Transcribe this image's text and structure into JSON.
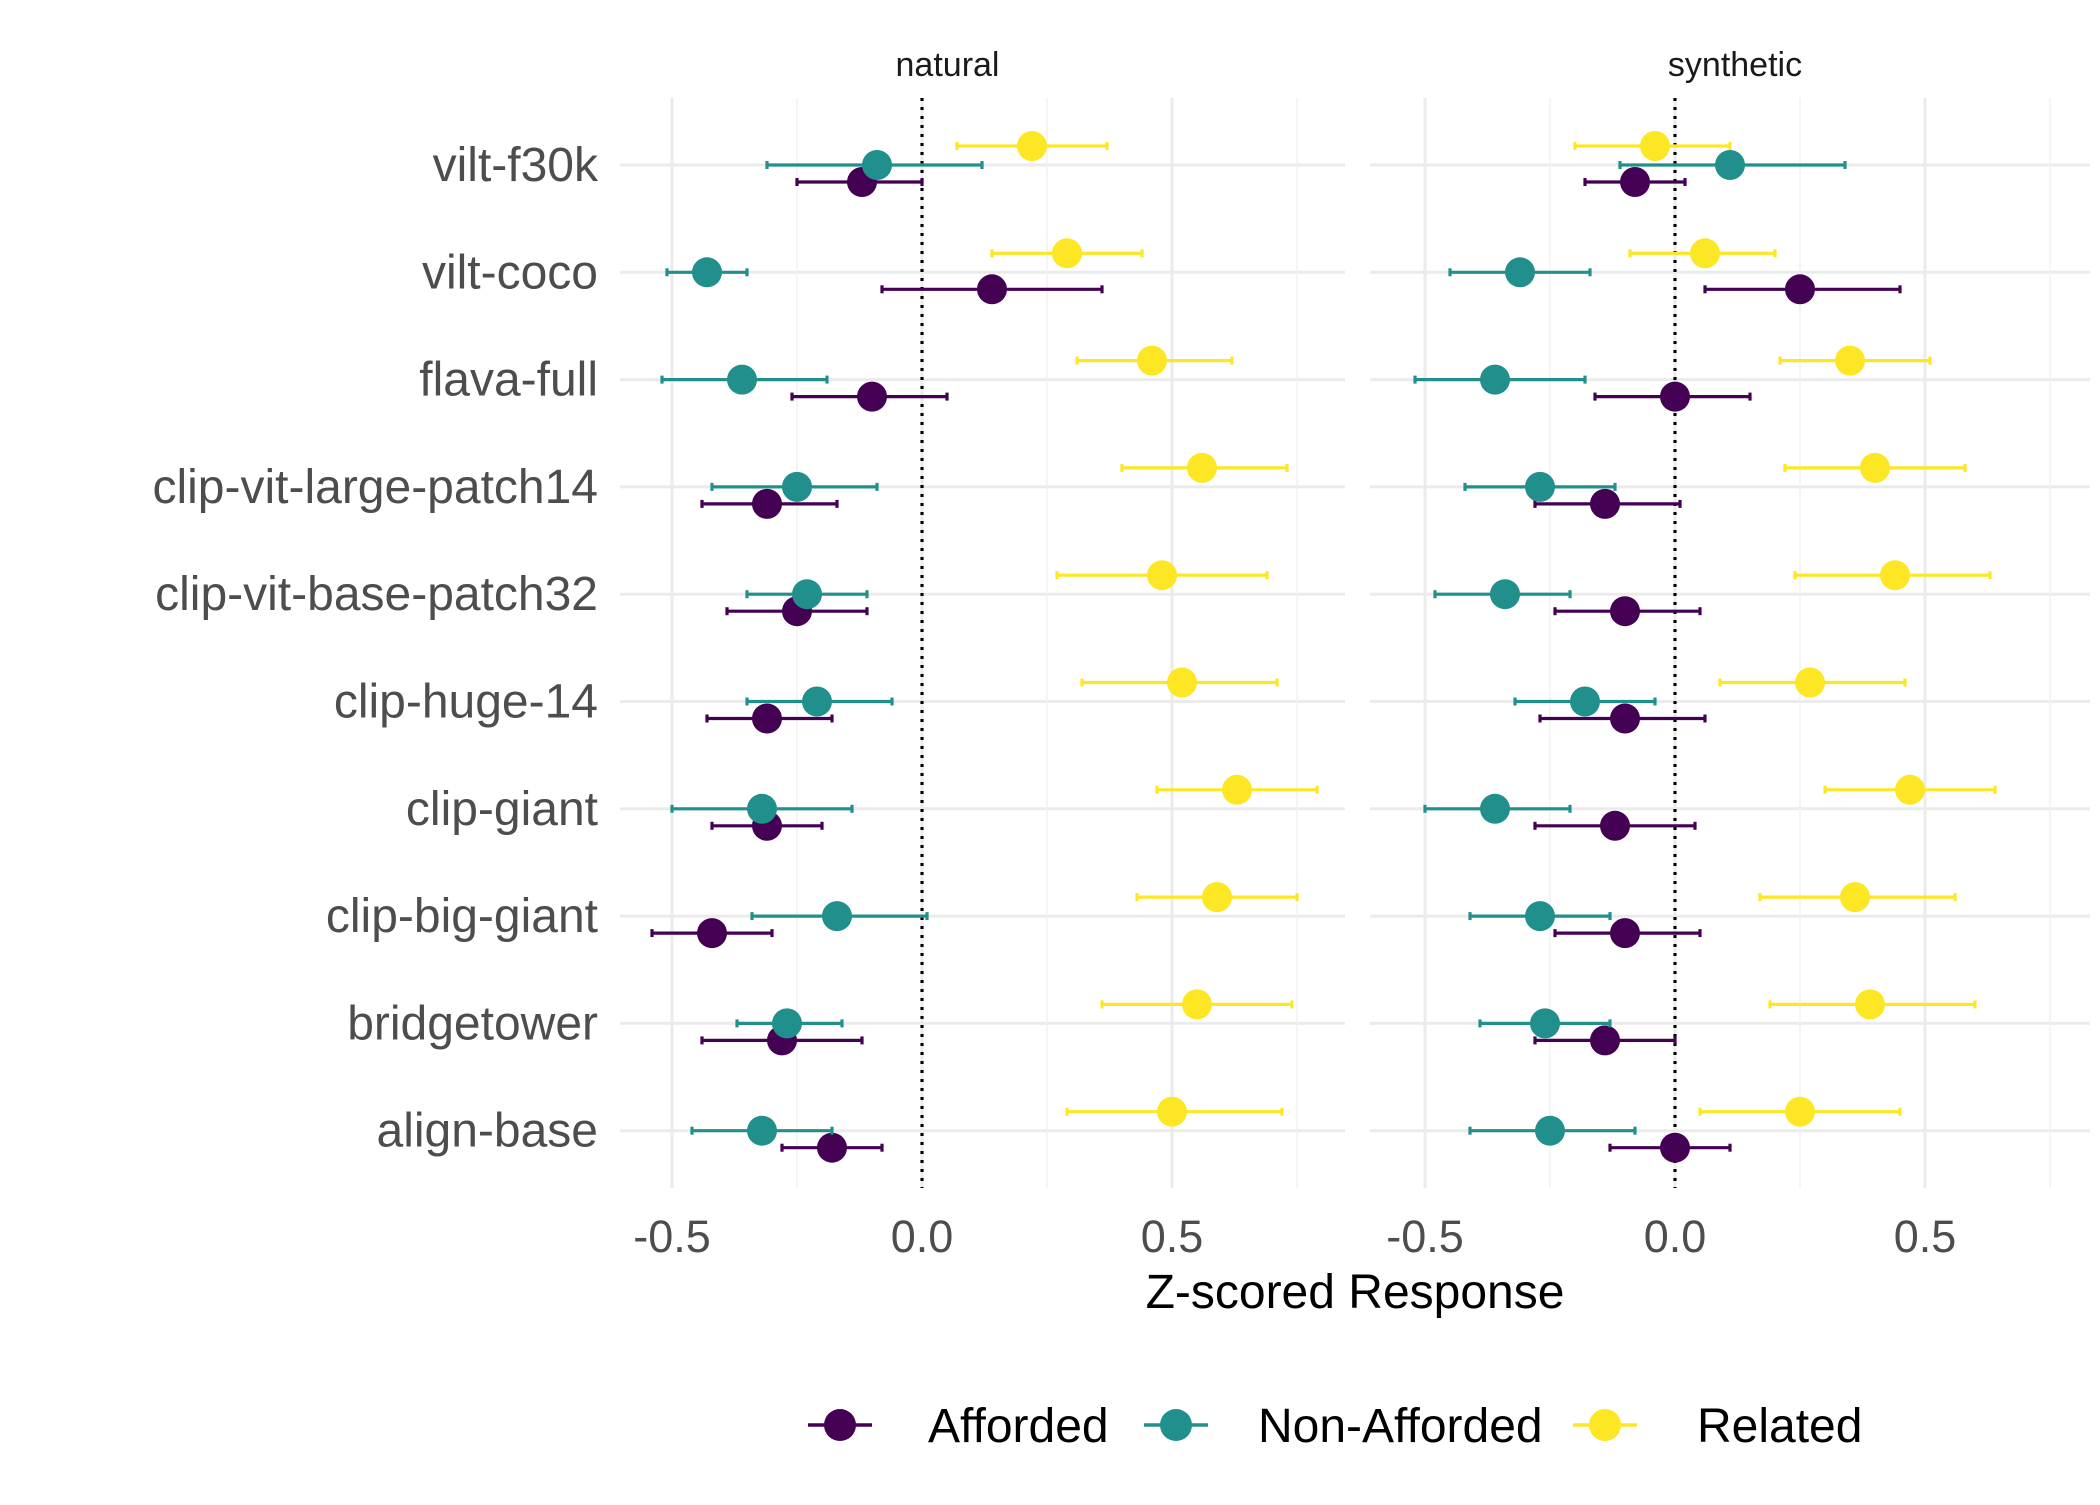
{
  "chart_data": {
    "type": "scatter",
    "subtype": "dot-and-errorbar, faceted",
    "xlabel": "Z-scored Response",
    "ylabel": "",
    "xlim": [
      -0.6,
      0.85
    ],
    "x_ticks": [
      -0.5,
      0.0,
      0.5
    ],
    "x_tick_labels": [
      "-0.5",
      "0.0",
      "0.5"
    ],
    "reference_line": {
      "x": 0.0,
      "style": "dotted"
    },
    "grid": true,
    "legend_position": "bottom",
    "categories": [
      "vilt-f30k",
      "vilt-coco",
      "flava-full",
      "clip-vit-large-patch14",
      "clip-vit-base-patch32",
      "clip-huge-14",
      "clip-giant",
      "clip-big-giant",
      "bridgetower",
      "align-base"
    ],
    "series_meta": [
      {
        "name": "Afforded",
        "color": "#440154"
      },
      {
        "name": "Non-Afforded",
        "color": "#21908C"
      },
      {
        "name": "Related",
        "color": "#FDE725"
      }
    ],
    "panels": [
      {
        "title": "natural",
        "series": [
          {
            "name": "Afforded",
            "values": [
              -0.12,
              0.14,
              -0.1,
              -0.31,
              -0.25,
              -0.31,
              -0.31,
              -0.42,
              -0.28,
              -0.18
            ],
            "lower": [
              -0.25,
              -0.08,
              -0.26,
              -0.44,
              -0.39,
              -0.43,
              -0.42,
              -0.54,
              -0.44,
              -0.28
            ],
            "upper": [
              0.0,
              0.36,
              0.05,
              -0.17,
              -0.11,
              -0.18,
              -0.2,
              -0.3,
              -0.12,
              -0.08
            ]
          },
          {
            "name": "Non-Afforded",
            "values": [
              -0.09,
              -0.43,
              -0.36,
              -0.25,
              -0.23,
              -0.21,
              -0.32,
              -0.17,
              -0.27,
              -0.32
            ],
            "lower": [
              -0.31,
              -0.51,
              -0.52,
              -0.42,
              -0.35,
              -0.35,
              -0.5,
              -0.34,
              -0.37,
              -0.46
            ],
            "upper": [
              0.12,
              -0.35,
              -0.19,
              -0.09,
              -0.11,
              -0.06,
              -0.14,
              0.01,
              -0.16,
              -0.18
            ]
          },
          {
            "name": "Related",
            "values": [
              0.22,
              0.29,
              0.46,
              0.56,
              0.48,
              0.52,
              0.63,
              0.59,
              0.55,
              0.5
            ],
            "lower": [
              0.07,
              0.14,
              0.31,
              0.4,
              0.27,
              0.32,
              0.47,
              0.43,
              0.36,
              0.29
            ],
            "upper": [
              0.37,
              0.44,
              0.62,
              0.73,
              0.69,
              0.71,
              0.79,
              0.75,
              0.74,
              0.72
            ]
          }
        ]
      },
      {
        "title": "synthetic",
        "series": [
          {
            "name": "Afforded",
            "values": [
              -0.08,
              0.25,
              0.0,
              -0.14,
              -0.1,
              -0.1,
              -0.12,
              -0.1,
              -0.14,
              0.0
            ],
            "lower": [
              -0.18,
              0.06,
              -0.16,
              -0.28,
              -0.24,
              -0.27,
              -0.28,
              -0.24,
              -0.28,
              -0.13
            ],
            "upper": [
              0.02,
              0.45,
              0.15,
              0.01,
              0.05,
              0.06,
              0.04,
              0.05,
              0.0,
              0.11
            ]
          },
          {
            "name": "Non-Afforded",
            "values": [
              0.11,
              -0.31,
              -0.36,
              -0.27,
              -0.34,
              -0.18,
              -0.36,
              -0.27,
              -0.26,
              -0.25
            ],
            "lower": [
              -0.11,
              -0.45,
              -0.52,
              -0.42,
              -0.48,
              -0.32,
              -0.5,
              -0.41,
              -0.39,
              -0.41
            ],
            "upper": [
              0.34,
              -0.17,
              -0.18,
              -0.12,
              -0.21,
              -0.04,
              -0.21,
              -0.13,
              -0.13,
              -0.08
            ]
          },
          {
            "name": "Related",
            "values": [
              -0.04,
              0.06,
              0.35,
              0.4,
              0.44,
              0.27,
              0.47,
              0.36,
              0.39,
              0.25
            ],
            "lower": [
              -0.2,
              -0.09,
              0.21,
              0.22,
              0.24,
              0.09,
              0.3,
              0.17,
              0.19,
              0.05
            ],
            "upper": [
              0.11,
              0.2,
              0.51,
              0.58,
              0.63,
              0.46,
              0.64,
              0.56,
              0.6,
              0.45
            ]
          }
        ]
      }
    ]
  }
}
